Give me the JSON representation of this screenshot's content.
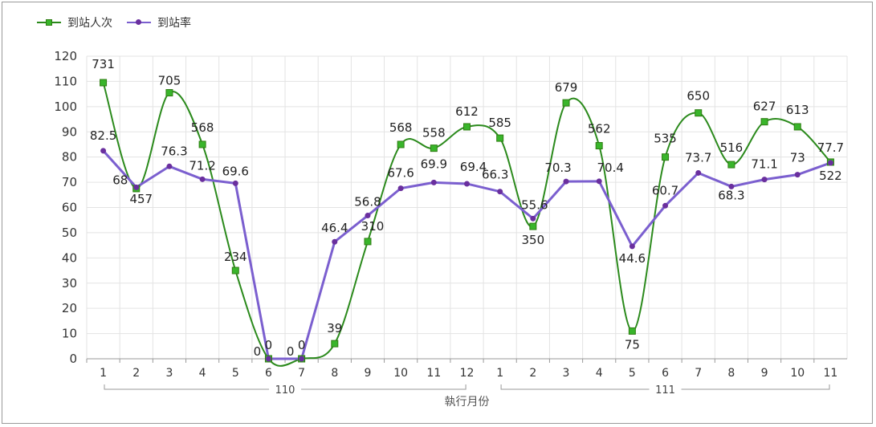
{
  "legend": {
    "series1": "到站人次",
    "series2": "到站率"
  },
  "colors": {
    "series1_line": "#2b8a1c",
    "series1_marker": "#39b52b",
    "series2_line": "#7b5fcf",
    "series2_marker": "#6a2f9e",
    "grid": "#e3e3e3"
  },
  "chart_data": {
    "type": "line",
    "xlabel": "執行月份",
    "categories": [
      "1",
      "2",
      "3",
      "4",
      "5",
      "6",
      "7",
      "8",
      "9",
      "10",
      "11",
      "12",
      "1",
      "2",
      "3",
      "4",
      "5",
      "6",
      "7",
      "8",
      "9",
      "10",
      "11"
    ],
    "groups": [
      {
        "label": "110",
        "from": 0,
        "to": 11
      },
      {
        "label": "111",
        "from": 12,
        "to": 22
      }
    ],
    "ylim": [
      0,
      120
    ],
    "yticks": [
      0,
      10,
      20,
      30,
      40,
      50,
      60,
      70,
      80,
      90,
      100,
      110,
      120
    ],
    "grid": true,
    "legend_position": "top-left",
    "series": [
      {
        "name": "到站人次",
        "marker": "square",
        "smooth": true,
        "values": [
          109.5,
          67.5,
          105.5,
          85,
          35,
          0,
          0,
          6,
          46.5,
          85,
          83.5,
          92,
          87.5,
          52.5,
          101.5,
          84.5,
          11,
          80,
          97.5,
          77,
          94,
          92,
          78
        ],
        "labels": [
          "731",
          "457",
          "705",
          "568",
          "234",
          "0",
          "0",
          "39",
          "310",
          "568",
          "558",
          "612",
          "585",
          "350",
          "679",
          "562",
          "75",
          "535",
          "650",
          "516",
          "627",
          "613",
          "522"
        ]
      },
      {
        "name": "到站率",
        "marker": "circle",
        "smooth": false,
        "values": [
          82.5,
          68,
          76.3,
          71.2,
          69.6,
          0,
          0,
          46.4,
          56.8,
          67.6,
          69.9,
          69.4,
          66.3,
          55.6,
          70.3,
          70.4,
          44.6,
          60.7,
          73.7,
          68.3,
          71.1,
          73,
          77.7
        ],
        "labels": [
          "82.5",
          "68",
          "76.3",
          "71.2",
          "69.6",
          "0",
          "0",
          "46.4",
          "56.8",
          "67.6",
          "69.9",
          "69.4",
          "66.3",
          "55.6",
          "70.3",
          "70.4",
          "44.6",
          "60.7",
          "73.7",
          "68.3",
          "71.1",
          "73",
          "77.7"
        ]
      }
    ]
  }
}
